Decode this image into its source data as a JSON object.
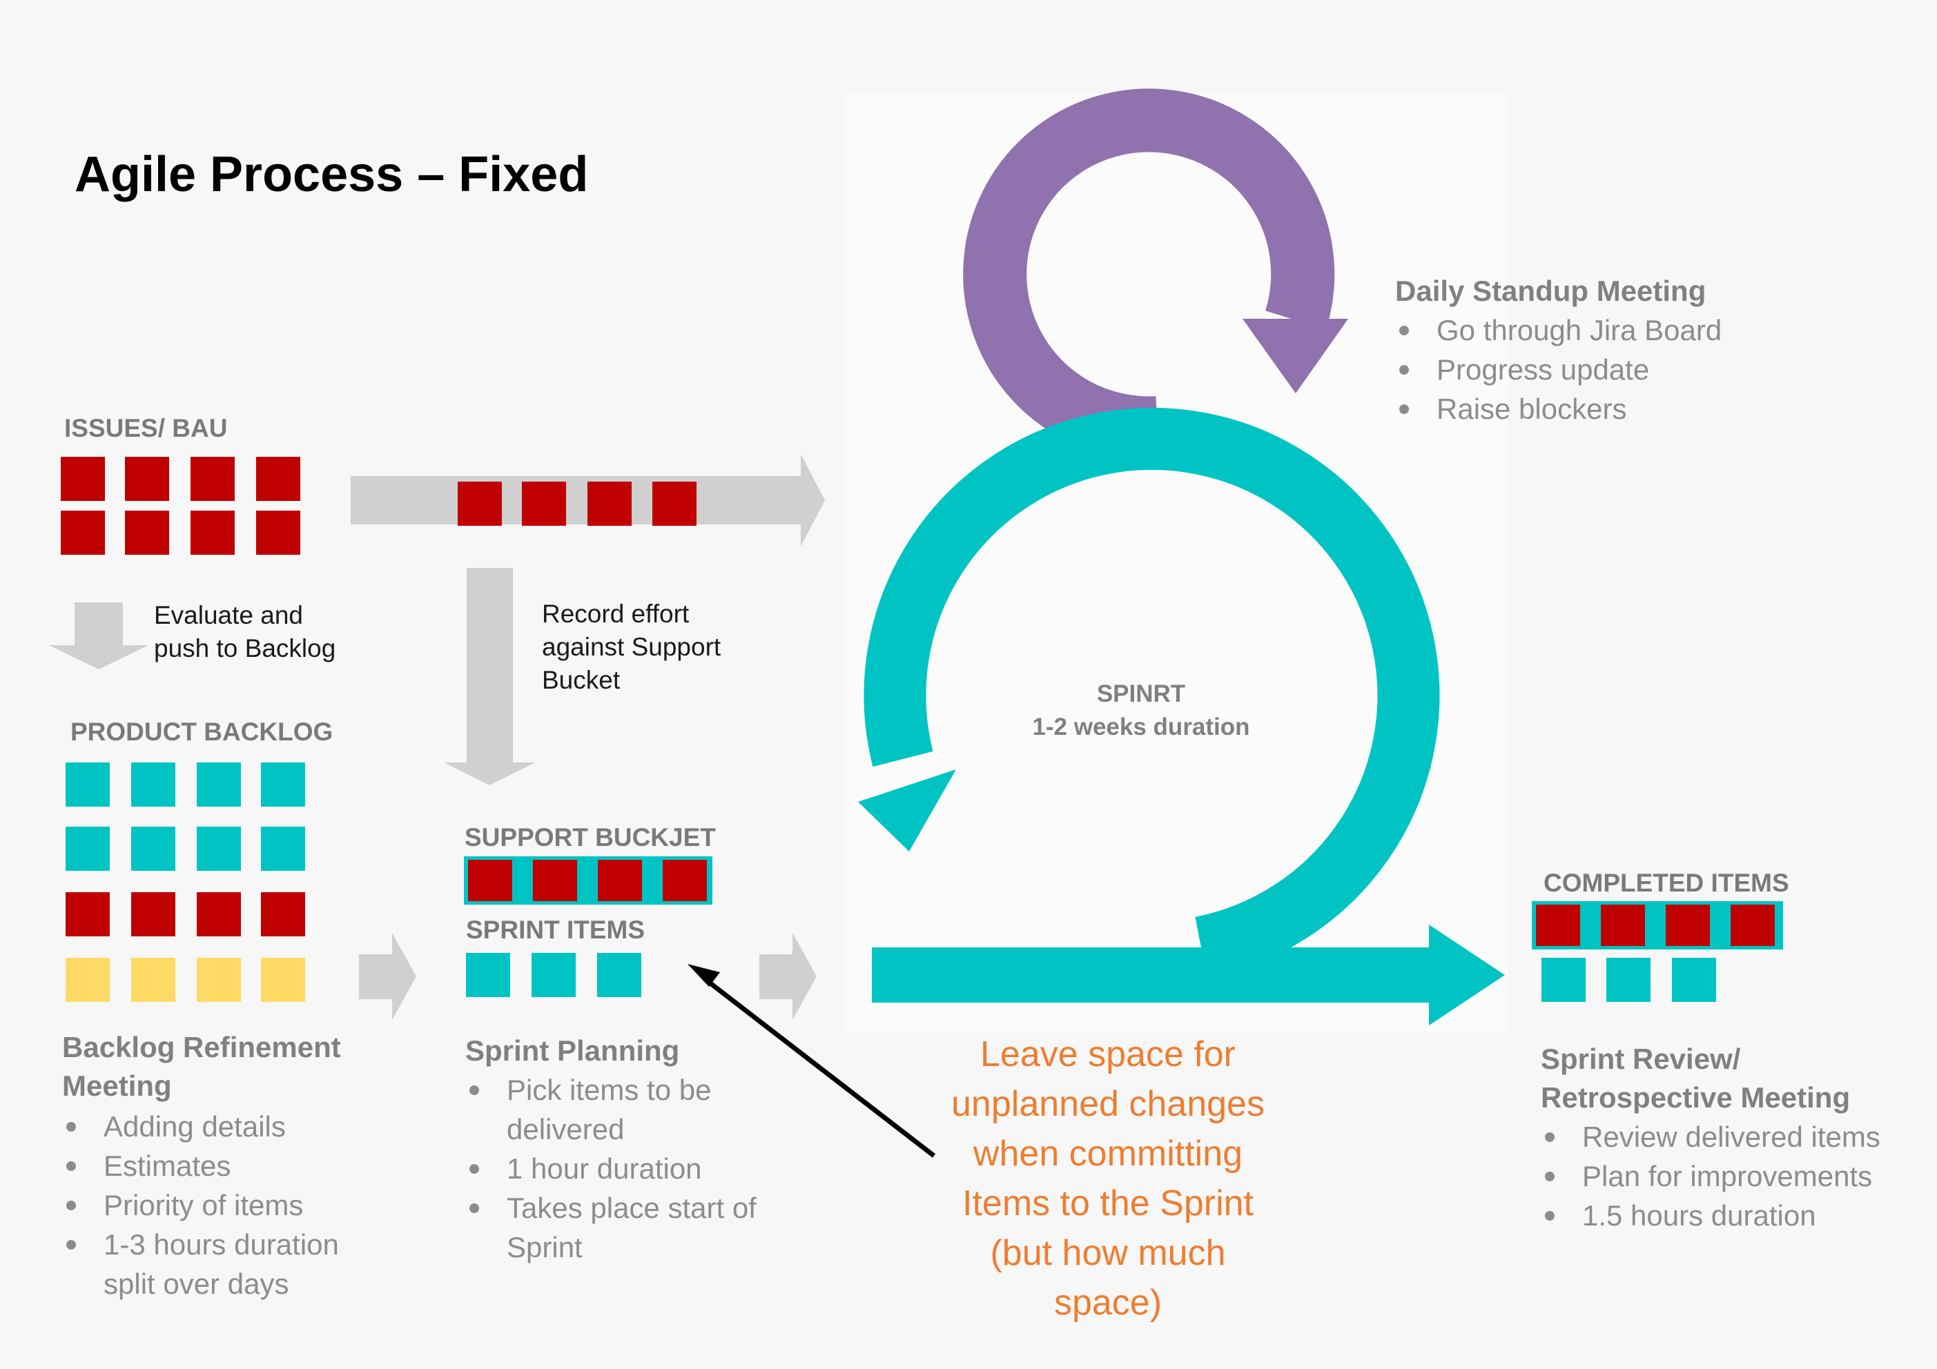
{
  "title": "Agile Process – Fixed",
  "colors": {
    "background": "#f7f7f7",
    "issue_red": "#c00000",
    "sprint_teal": "#00c4c4",
    "backlog_yellow": "#ffd966",
    "standup_purple": "#8f72ae",
    "connector_gray": "#d0d0d0",
    "note_orange": "#ee7d2f"
  },
  "issues": {
    "label": "ISSUES/ BAU"
  },
  "evaluate_label": [
    "Evaluate and",
    "push to Backlog"
  ],
  "record_label": [
    "Record effort",
    "against Support",
    "Bucket"
  ],
  "product_backlog": {
    "label": "PRODUCT BACKLOG"
  },
  "support_bucket": {
    "label": "SUPPORT BUCKJET"
  },
  "sprint_items": {
    "label": "SPRINT ITEMS"
  },
  "completed_items": {
    "label": "COMPLETED ITEMS"
  },
  "sprint_cycle": {
    "title": "SPINRT",
    "duration": "1-2 weeks duration"
  },
  "daily_standup": {
    "title": "Daily Standup Meeting",
    "bullets": [
      "Go through Jira Board",
      "Progress update",
      "Raise blockers"
    ]
  },
  "backlog_refinement": {
    "title": [
      "Backlog Refinement",
      "Meeting"
    ],
    "bullets": [
      "Adding details",
      "Estimates",
      "Priority of items",
      "1-3 hours duration split over days"
    ]
  },
  "sprint_planning": {
    "title": "Sprint Planning",
    "bullets": [
      "Pick items to be delivered",
      "1 hour duration",
      "Takes place start of Sprint"
    ]
  },
  "sprint_review": {
    "title": [
      "Sprint Review/",
      "Retrospective Meeting"
    ],
    "bullets": [
      "Review delivered items",
      "Plan for improvements",
      "1.5 hours duration"
    ]
  },
  "note": [
    "Leave space for",
    "unplanned changes",
    "when committing",
    "Items to the Sprint",
    "(but how much",
    "space)"
  ]
}
